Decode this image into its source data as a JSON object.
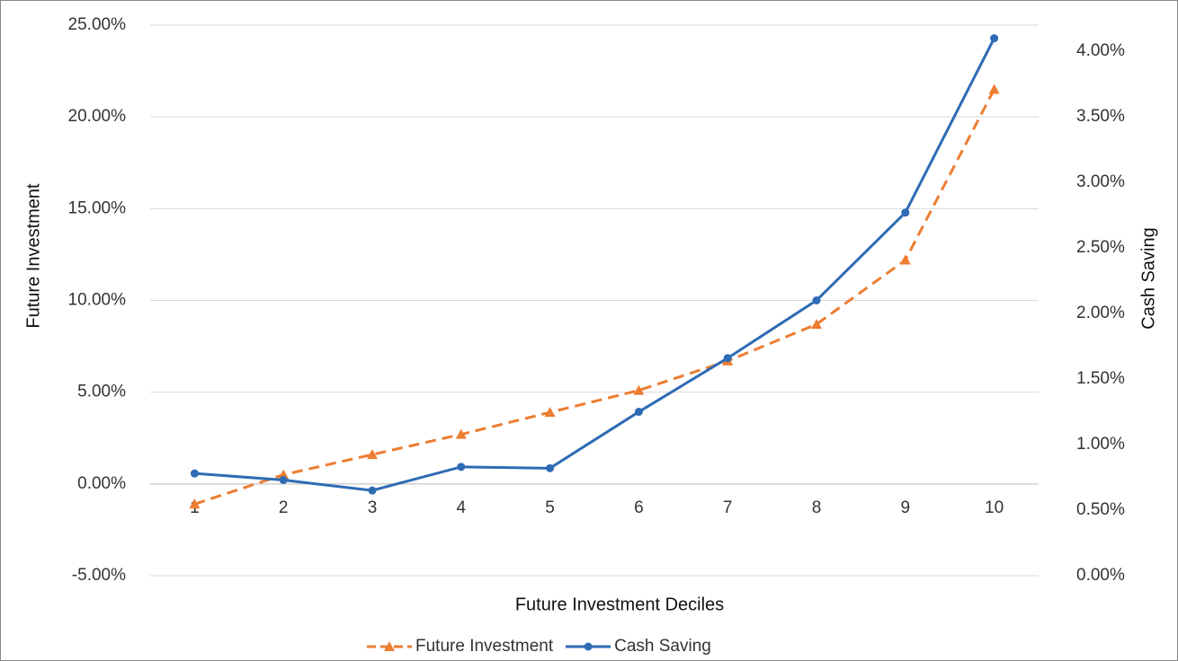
{
  "chart_data": {
    "type": "line",
    "x_label": "Future Investment Deciles",
    "y_label": "Future Investment",
    "y2_label": "Cash Saving",
    "categories": [
      "1",
      "2",
      "3",
      "4",
      "5",
      "6",
      "7",
      "8",
      "9",
      "10"
    ],
    "series": [
      {
        "name": "Future Investment",
        "color": "#ed7d31",
        "dash": true,
        "marker": "triangle",
        "values": [
          -1.1,
          0.5,
          1.6,
          2.7,
          3.9,
          5.1,
          6.7,
          8.7,
          12.2,
          21.5
        ]
      },
      {
        "name": "Cash Saving",
        "color": "#2e6bb4",
        "dash": false,
        "marker": "circle",
        "axis": "y2",
        "values": [
          0.78,
          0.73,
          0.65,
          0.83,
          0.82,
          1.25,
          1.66,
          2.1,
          2.77,
          4.1
        ]
      }
    ],
    "ylim": [
      -5,
      25
    ],
    "yticks": [
      {
        "value": -5,
        "label": "-5.00%"
      },
      {
        "value": 0,
        "label": "0.00%"
      },
      {
        "value": 5,
        "label": "5.00%"
      },
      {
        "value": 10,
        "label": "10.00%"
      },
      {
        "value": 15,
        "label": "15.00%"
      },
      {
        "value": 20,
        "label": "20.00%"
      },
      {
        "value": 25,
        "label": "25.00%"
      }
    ],
    "y2lim": [
      0,
      4.2
    ],
    "y2ticks": [
      {
        "value": 0,
        "label": "0.00%"
      },
      {
        "value": 0.5,
        "label": "0.50%"
      },
      {
        "value": 1,
        "label": "1.00%"
      },
      {
        "value": 1.5,
        "label": "1.50%"
      },
      {
        "value": 2,
        "label": "2.00%"
      },
      {
        "value": 2.5,
        "label": "2.50%"
      },
      {
        "value": 3,
        "label": "3.00%"
      },
      {
        "value": 3.5,
        "label": "3.50%"
      },
      {
        "value": 4,
        "label": "4.00%"
      }
    ],
    "grid": true,
    "legend": "bottom"
  }
}
